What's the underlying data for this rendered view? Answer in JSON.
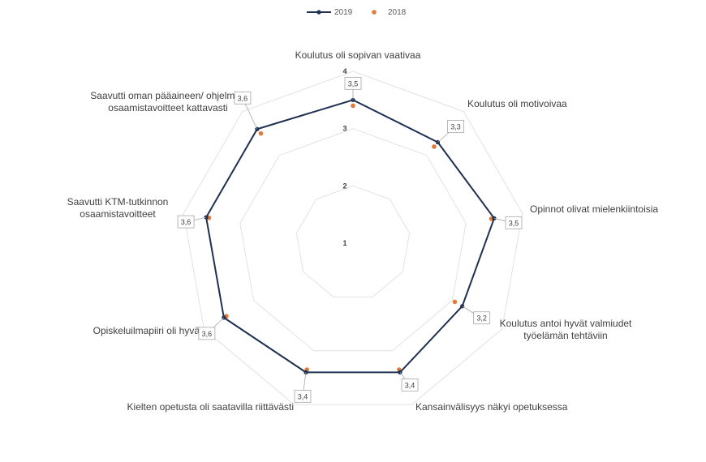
{
  "chart_data": {
    "type": "radar",
    "title": "",
    "legend_position": "top",
    "axis": {
      "min": 1,
      "max": 4,
      "ticks": [
        "1",
        "2",
        "3",
        "4"
      ]
    },
    "categories": [
      [
        "Koulutus oli sopivan vaativaa"
      ],
      [
        "Koulutus oli motivoivaa"
      ],
      [
        "Opinnot olivat mielenkiintoisia"
      ],
      [
        "Koulutus antoi hyvät valmiudet",
        "työelämän tehtäviin"
      ],
      [
        "Kansainvälisyys näkyi opetuksessa"
      ],
      [
        "Kielten opetusta oli saatavilla riittävästi"
      ],
      [
        "Opiskeluilmapiiri oli hyvä"
      ],
      [
        "Saavutti KTM-tutkinnon",
        "osaamistavoitteet"
      ],
      [
        "Saavutti oman pääaineen/ ohjelman",
        "osaamistavoitteet kattavasti"
      ]
    ],
    "series": [
      {
        "name": "2019",
        "color": "#1f3050",
        "style": "line-markers",
        "values": [
          3.5,
          3.3,
          3.5,
          3.2,
          3.4,
          3.4,
          3.6,
          3.6,
          3.6
        ],
        "labels": [
          "3,5",
          "3,3",
          "3,5",
          "3,2",
          "3,4",
          "3,4",
          "3,6",
          "3,6",
          "3,6"
        ]
      },
      {
        "name": "2018",
        "color": "#e07b39",
        "style": "markers",
        "values": [
          3.4,
          3.2,
          3.45,
          3.05,
          3.35,
          3.35,
          3.55,
          3.55,
          3.5
        ]
      }
    ],
    "grid_color": "#e2e2e2"
  }
}
